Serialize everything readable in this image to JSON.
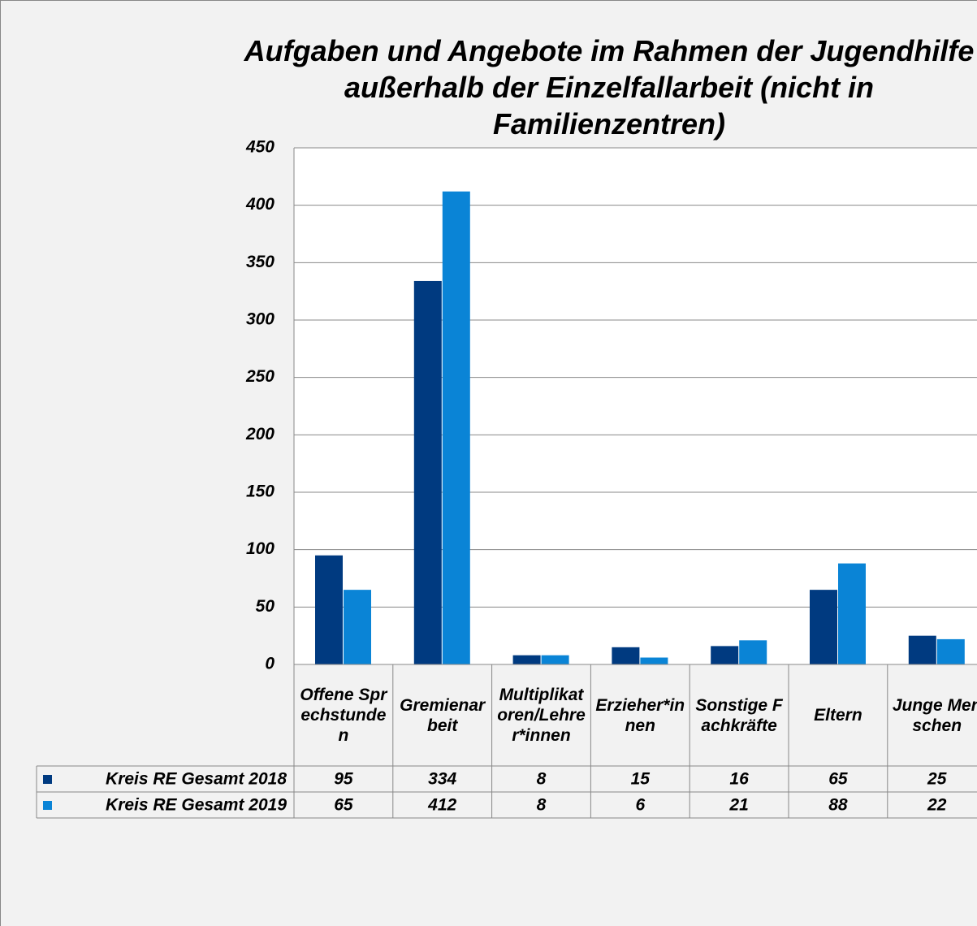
{
  "chart_data": {
    "type": "bar",
    "title": "Aufgaben und Angebote im Rahmen der Jugendhilfe außerhalb der Einzelfallarbeit (nicht in Familienzentren)",
    "categories": [
      "Offene Sprechstunden",
      "Gremienarbeit",
      "Multiplikatoren/Lehrer*innen",
      "Erzieher*innen",
      "Sonstige Fachkräfte",
      "Eltern",
      "Junge Menschen"
    ],
    "series": [
      {
        "name": "Kreis RE Gesamt 2018",
        "color": "#003a80",
        "values": [
          95,
          334,
          8,
          15,
          16,
          65,
          25
        ]
      },
      {
        "name": "Kreis RE Gesamt 2019",
        "color": "#0a84d6",
        "values": [
          65,
          412,
          8,
          6,
          21,
          88,
          22
        ]
      }
    ],
    "ylim": [
      0,
      450
    ],
    "yticks": [
      0,
      50,
      100,
      150,
      200,
      250,
      300,
      350,
      400,
      450
    ],
    "grid": true
  }
}
